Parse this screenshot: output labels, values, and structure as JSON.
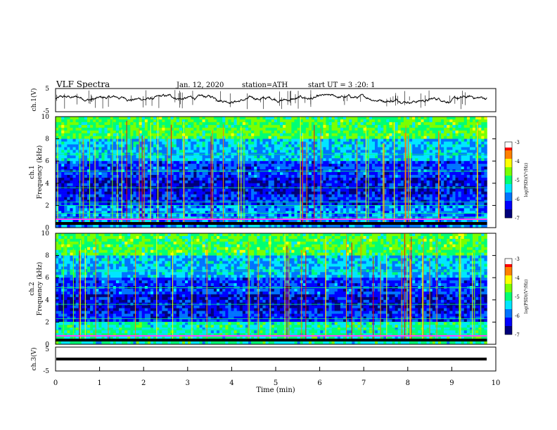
{
  "header": {
    "title": "VLF  Spectra",
    "date": "Jan.  12,  2020",
    "station": "station=ATH",
    "start": "start  UT  =    3  :20: 1"
  },
  "chart_data": [
    {
      "type": "line",
      "panel": "ch1-waveform",
      "ylabel": "ch.1(V)",
      "ylim": [
        -5,
        5
      ],
      "yticks": [
        "5",
        "-5"
      ],
      "xlim": [
        0,
        10
      ],
      "description_level_V": 0.6,
      "series": [
        {
          "values_min_V": -1.5,
          "values_max_V": 2.5,
          "x_end": 9.8
        }
      ]
    },
    {
      "type": "heatmap",
      "panel": "ch1-spectrogram",
      "ylabel": "ch.1\nFrequency  (kHz)",
      "ylabel_lines": [
        "ch.1",
        "Frequency  (kHz)"
      ],
      "ylim": [
        0,
        10
      ],
      "yticks": [
        "10",
        "8",
        "6",
        "4",
        "2",
        "0"
      ],
      "xlim": [
        0,
        10
      ],
      "x_end": 9.8,
      "colorbar": {
        "label": "log(PSD)(V²/Hz)",
        "ticks": [
          "-3",
          "-4",
          "-5",
          "-6",
          "-7"
        ],
        "range": [
          -7,
          -3
        ]
      }
    },
    {
      "type": "heatmap",
      "panel": "ch2-spectrogram",
      "ylabel_lines": [
        "ch.2",
        "Frequency  (kHz)"
      ],
      "ylim": [
        0,
        10
      ],
      "yticks": [
        "10",
        "8",
        "6",
        "4",
        "2",
        "0"
      ],
      "xlim": [
        0,
        10
      ],
      "x_end": 9.8,
      "colorbar": {
        "label": "log(PSD)(V²/Hz)",
        "ticks": [
          "-3",
          "-4",
          "-5",
          "-6",
          "-7"
        ],
        "range": [
          -7,
          -3
        ]
      }
    },
    {
      "type": "line",
      "panel": "ch3-waveform",
      "ylabel": "ch.3(V)",
      "ylim": [
        -5,
        5
      ],
      "yticks": [
        "5",
        "-5"
      ],
      "xlim": [
        0,
        10
      ],
      "series": [
        {
          "value_V": 0,
          "x_end": 9.8
        }
      ]
    }
  ],
  "xaxis": {
    "label": "Time  (min)",
    "ticks": [
      "0",
      "1",
      "2",
      "3",
      "4",
      "5",
      "6",
      "7",
      "8",
      "9",
      "10"
    ]
  },
  "colors": {
    "colormap": [
      "#000000",
      "#00007a",
      "#0000ff",
      "#0073ff",
      "#00e6ff",
      "#00ff73",
      "#7aff00",
      "#ffff00",
      "#ff8000",
      "#ff0000",
      "#ffffff"
    ],
    "axis": "#000000"
  }
}
